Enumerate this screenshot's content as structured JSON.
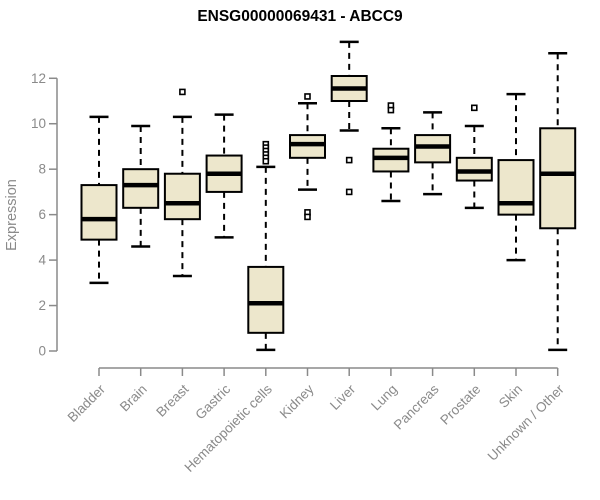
{
  "chart_data": {
    "type": "boxplot",
    "title": "ENSG00000069431 - ABCC9",
    "xlabel": "",
    "ylabel": "Expression",
    "ylim": [
      0,
      12
    ],
    "yticks": [
      0,
      2,
      4,
      6,
      8,
      10,
      12
    ],
    "grid": false,
    "legend": "none",
    "categories": [
      "Bladder",
      "Brain",
      "Breast",
      "Gastric",
      "Hematopoietic cells",
      "Kidney",
      "Liver",
      "Lung",
      "Pancreas",
      "Prostate",
      "Skin",
      "Unknown / Other"
    ],
    "series": [
      {
        "name": "Bladder",
        "min": 3.0,
        "q1": 4.9,
        "median": 5.8,
        "q3": 7.3,
        "max": 10.3,
        "outliers": []
      },
      {
        "name": "Brain",
        "min": 4.6,
        "q1": 6.3,
        "median": 7.3,
        "q3": 8.0,
        "max": 9.9,
        "outliers": []
      },
      {
        "name": "Breast",
        "min": 3.3,
        "q1": 5.8,
        "median": 6.5,
        "q3": 7.8,
        "max": 10.3,
        "outliers": [
          11.4
        ]
      },
      {
        "name": "Gastric",
        "min": 5.0,
        "q1": 7.0,
        "median": 7.8,
        "q3": 8.6,
        "max": 10.4,
        "outliers": []
      },
      {
        "name": "Hematopoietic cells",
        "min": 0.05,
        "q1": 0.8,
        "median": 2.1,
        "q3": 3.7,
        "max": 8.1,
        "outliers": [
          9.1,
          8.95,
          8.8,
          8.65,
          8.5,
          8.35
        ]
      },
      {
        "name": "Kidney",
        "min": 7.1,
        "q1": 8.5,
        "median": 9.1,
        "q3": 9.5,
        "max": 10.9,
        "outliers": [
          11.2,
          6.1,
          5.9
        ]
      },
      {
        "name": "Liver",
        "min": 9.7,
        "q1": 11.0,
        "median": 11.55,
        "q3": 12.1,
        "max": 13.6,
        "outliers": [
          8.4,
          7.0
        ]
      },
      {
        "name": "Lung",
        "min": 6.6,
        "q1": 7.9,
        "median": 8.5,
        "q3": 8.9,
        "max": 9.8,
        "outliers": [
          10.8,
          10.6
        ]
      },
      {
        "name": "Pancreas",
        "min": 6.9,
        "q1": 8.3,
        "median": 9.0,
        "q3": 9.5,
        "max": 10.5,
        "outliers": []
      },
      {
        "name": "Prostate",
        "min": 6.3,
        "q1": 7.5,
        "median": 7.9,
        "q3": 8.5,
        "max": 9.9,
        "outliers": [
          10.7
        ]
      },
      {
        "name": "Skin",
        "min": 4.0,
        "q1": 6.0,
        "median": 6.5,
        "q3": 8.4,
        "max": 11.3,
        "outliers": []
      },
      {
        "name": "Unknown / Other",
        "min": 0.05,
        "q1": 5.4,
        "median": 7.8,
        "q3": 9.8,
        "max": 13.1,
        "outliers": []
      }
    ],
    "colors": {
      "box_fill": "#ede7cc",
      "box_border": "#000000",
      "median": "#000000",
      "whisker": "#000000",
      "outlier_stroke": "#000000",
      "axis": "#8a8a8a",
      "title": "#000000",
      "background": "#ffffff"
    }
  }
}
